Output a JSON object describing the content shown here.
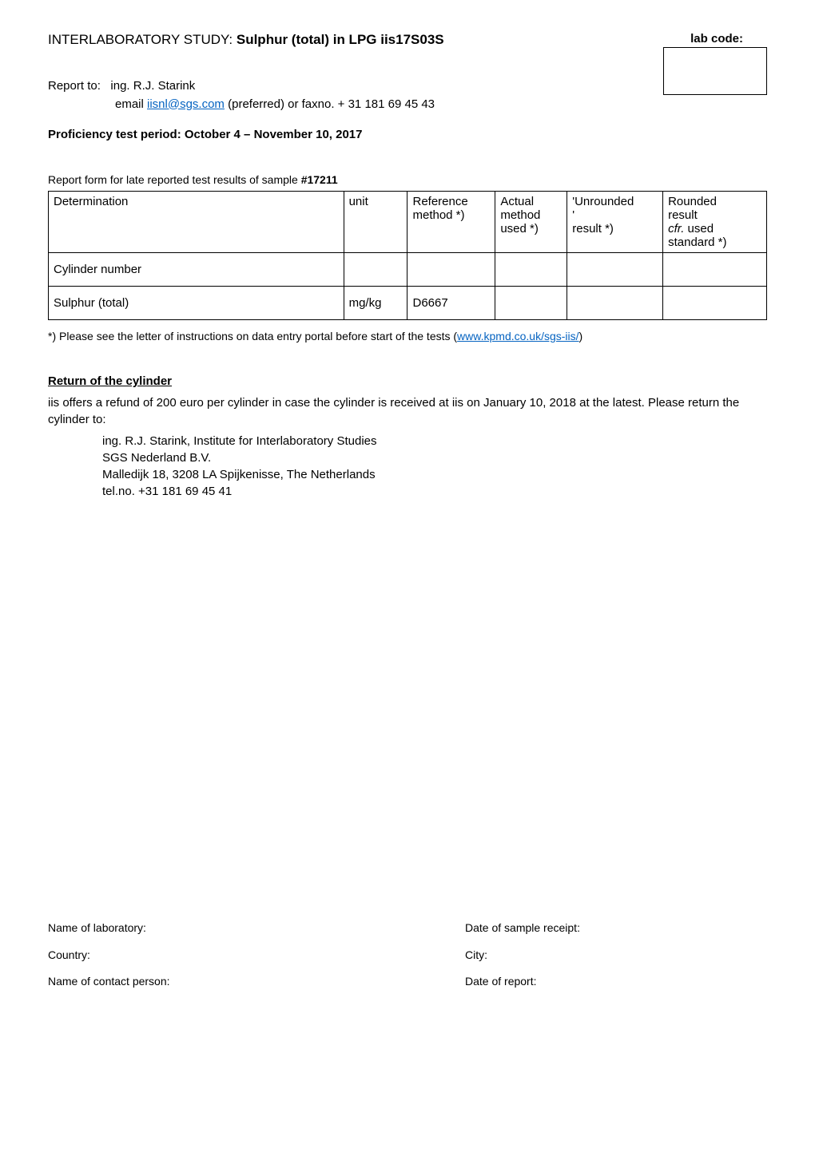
{
  "header": {
    "title_prefix": "INTERLABORATORY STUDY: ",
    "title_bold": "Sulphur (total) in LPG iis17S03S",
    "lab_code_label": "lab code:"
  },
  "report_to": {
    "label": "Report to:",
    "name": "ing. R.J. Starink",
    "email_prefix": "email ",
    "email": "iisnl@sgs.com",
    "email_suffix": " (preferred) or faxno. + 31 181 69 45 43"
  },
  "proficiency": "Proficiency test period: October 4 – November 10, 2017",
  "report_form": {
    "intro": "Report form for late reported test results of sample ",
    "sample_number": "#17211"
  },
  "table": {
    "columns": [
      {
        "key": "determination",
        "label": "Determination"
      },
      {
        "key": "unit",
        "label": "unit"
      },
      {
        "key": "ref_method",
        "label_line1": "Reference",
        "label_line2": "method *)"
      },
      {
        "key": "actual_method",
        "label_line1": "Actual",
        "label_line2": "method",
        "label_line3": "used *)"
      },
      {
        "key": "unrounded",
        "label_line1": "'Unrounded",
        "label_line2": "'",
        "label_line3": "result *)"
      },
      {
        "key": "rounded",
        "label_line1": "Rounded",
        "label_line2": "result",
        "label_line3_italic": "cfr.",
        "label_line3_rest": " used",
        "label_line4": "standard *)"
      }
    ],
    "rows": [
      {
        "determination": "Cylinder number",
        "unit": "",
        "ref_method": "",
        "actual_method": "",
        "unrounded": "",
        "rounded": ""
      },
      {
        "determination": "Sulphur (total)",
        "unit": "mg/kg",
        "ref_method": "D6667",
        "actual_method": "",
        "unrounded": "",
        "rounded": ""
      }
    ]
  },
  "footnote": {
    "prefix": "*)  Please see the letter of instructions on data entry portal before start of the tests (",
    "link": "www.kpmd.co.uk/sgs-iis/",
    "suffix": ")"
  },
  "return_section": {
    "heading": "Return of the cylinder",
    "body": "iis offers a refund of 200 euro per cylinder in case the cylinder is received at iis on January 10, 2018 at the latest. Please return the cylinder to:",
    "address": [
      "ing. R.J. Starink, Institute for Interlaboratory Studies",
      "SGS Nederland B.V.",
      "Malledijk 18, 3208 LA Spijkenisse, The Netherlands",
      "tel.no. +31 181 69 45 41"
    ]
  },
  "footer": {
    "left": [
      "Name of laboratory:",
      "Country:",
      "Name of contact person:"
    ],
    "right": [
      "Date of sample receipt:",
      "City:",
      "Date of report:"
    ]
  }
}
